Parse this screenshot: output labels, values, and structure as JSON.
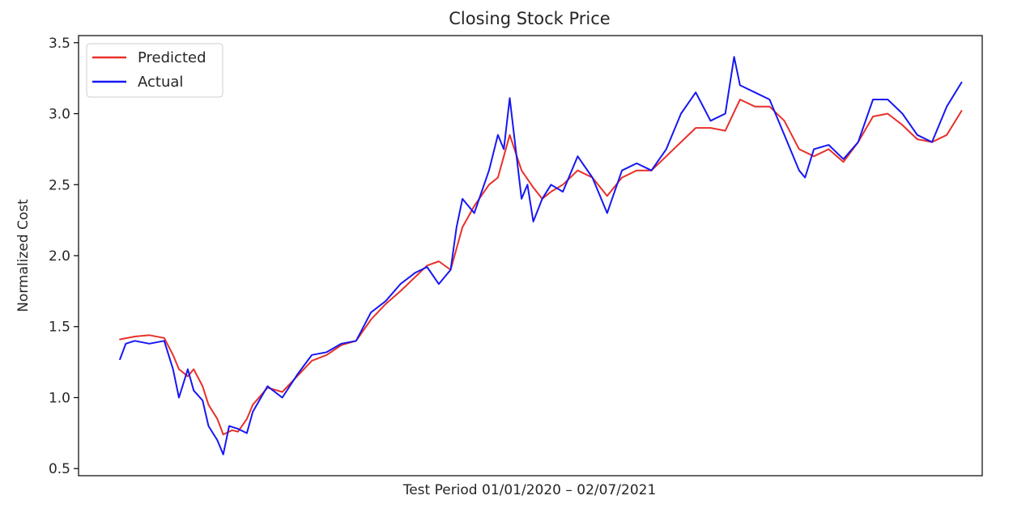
{
  "chart_data": {
    "type": "line",
    "title": "Closing Stock Price",
    "xlabel": "Test Period 01/01/2020 – 02/07/2021",
    "ylabel": "Normalized Cost",
    "ylim": [
      0.45,
      3.55
    ],
    "yticks": [
      0.5,
      1.0,
      1.5,
      2.0,
      2.5,
      3.0,
      3.5
    ],
    "ytick_labels": [
      "0.5",
      "1.0",
      "1.5",
      "2.0",
      "2.5",
      "3.0",
      "3.5"
    ],
    "xlim": [
      -14,
      292
    ],
    "x_ticks_shown": false,
    "grid": false,
    "legend_position": "top-left",
    "series": [
      {
        "name": "Predicted",
        "color": "#e8302a",
        "x": [
          0,
          5,
          10,
          15,
          18,
          20,
          23,
          25,
          28,
          30,
          33,
          35,
          38,
          40,
          43,
          45,
          50,
          55,
          60,
          65,
          70,
          75,
          80,
          85,
          90,
          95,
          100,
          104,
          108,
          112,
          116,
          120,
          125,
          128,
          132,
          136,
          140,
          143,
          146,
          150,
          155,
          160,
          165,
          170,
          175,
          180,
          185,
          190,
          195,
          200,
          205,
          210,
          215,
          220,
          225,
          230,
          235,
          240,
          245,
          250,
          255,
          260,
          265,
          270,
          275,
          280,
          285
        ],
        "values": [
          1.41,
          1.43,
          1.44,
          1.42,
          1.3,
          1.2,
          1.15,
          1.2,
          1.08,
          0.95,
          0.85,
          0.74,
          0.77,
          0.76,
          0.85,
          0.95,
          1.07,
          1.04,
          1.15,
          1.26,
          1.3,
          1.37,
          1.4,
          1.55,
          1.66,
          1.75,
          1.85,
          1.93,
          1.96,
          1.9,
          2.2,
          2.35,
          2.5,
          2.55,
          2.85,
          2.6,
          2.48,
          2.4,
          2.45,
          2.5,
          2.6,
          2.55,
          2.42,
          2.55,
          2.6,
          2.6,
          2.7,
          2.8,
          2.9,
          2.9,
          2.88,
          3.1,
          3.05,
          3.05,
          2.95,
          2.75,
          2.7,
          2.75,
          2.66,
          2.8,
          2.98,
          3.0,
          2.92,
          2.82,
          2.8,
          2.85,
          3.02
        ]
      },
      {
        "name": "Actual",
        "color": "#1717f2",
        "x": [
          0,
          2,
          5,
          10,
          15,
          18,
          20,
          23,
          25,
          28,
          30,
          33,
          35,
          37,
          40,
          43,
          45,
          50,
          55,
          60,
          65,
          70,
          75,
          80,
          85,
          90,
          95,
          100,
          104,
          108,
          112,
          114,
          116,
          120,
          125,
          128,
          130,
          132,
          136,
          138,
          140,
          143,
          146,
          150,
          155,
          160,
          165,
          170,
          175,
          180,
          185,
          190,
          195,
          200,
          205,
          208,
          210,
          215,
          220,
          225,
          230,
          232,
          235,
          240,
          245,
          250,
          255,
          260,
          265,
          270,
          275,
          280,
          285
        ],
        "values": [
          1.27,
          1.38,
          1.4,
          1.38,
          1.4,
          1.2,
          1.0,
          1.2,
          1.05,
          0.98,
          0.8,
          0.7,
          0.6,
          0.8,
          0.78,
          0.75,
          0.9,
          1.08,
          1.0,
          1.16,
          1.3,
          1.32,
          1.38,
          1.4,
          1.6,
          1.68,
          1.8,
          1.88,
          1.92,
          1.8,
          1.9,
          2.2,
          2.4,
          2.3,
          2.6,
          2.85,
          2.75,
          3.11,
          2.4,
          2.5,
          2.24,
          2.4,
          2.5,
          2.45,
          2.7,
          2.55,
          2.3,
          2.6,
          2.65,
          2.6,
          2.75,
          3.0,
          3.15,
          2.95,
          3.0,
          3.4,
          3.2,
          3.15,
          3.1,
          2.85,
          2.6,
          2.55,
          2.75,
          2.78,
          2.68,
          2.8,
          3.1,
          3.1,
          3.0,
          2.85,
          2.8,
          3.05,
          3.22
        ]
      }
    ]
  }
}
